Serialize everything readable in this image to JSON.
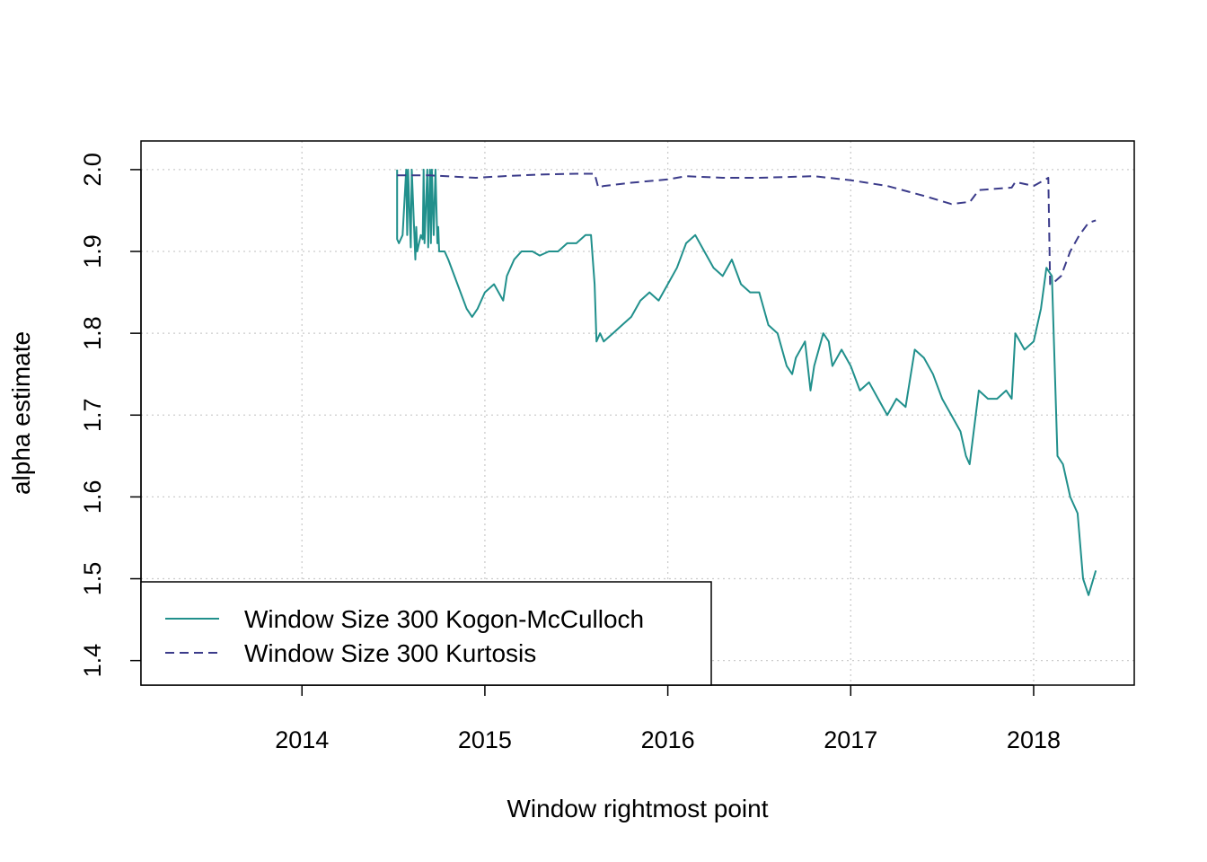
{
  "chart_data": {
    "type": "line",
    "xlabel": "Window rightmost point",
    "ylabel": "alpha estimate",
    "xlim": [
      2013.12,
      2018.55
    ],
    "ylim": [
      1.37,
      2.035
    ],
    "x_ticks": [
      2014,
      2015,
      2016,
      2017,
      2018
    ],
    "y_ticks": [
      1.4,
      1.5,
      1.6,
      1.7,
      1.8,
      1.9,
      2.0
    ],
    "x_tick_labels": [
      "2014",
      "2015",
      "2016",
      "2017",
      "2018"
    ],
    "y_tick_labels": [
      "1.4",
      "1.5",
      "1.6",
      "1.7",
      "1.8",
      "1.9",
      "2.0"
    ],
    "grid": true,
    "legend_position": "bottom-left",
    "series": [
      {
        "name": "Window Size 300 Kogon-McCulloch",
        "color": "#21908C",
        "dash": "solid",
        "x": [
          2014.52,
          2014.52,
          2014.53,
          2014.55,
          2014.57,
          2014.575,
          2014.58,
          2014.595,
          2014.6,
          2014.62,
          2014.625,
          2014.63,
          2014.65,
          2014.66,
          2014.665,
          2014.67,
          2014.685,
          2014.69,
          2014.7,
          2014.705,
          2014.71,
          2014.72,
          2014.73,
          2014.74,
          2014.745,
          2014.75,
          2014.78,
          2014.8,
          2014.85,
          2014.9,
          2014.93,
          2014.96,
          2015.0,
          2015.05,
          2015.1,
          2015.12,
          2015.16,
          2015.2,
          2015.26,
          2015.3,
          2015.35,
          2015.4,
          2015.45,
          2015.5,
          2015.55,
          2015.58,
          2015.6,
          2015.61,
          2015.63,
          2015.65,
          2015.7,
          2015.75,
          2015.8,
          2015.85,
          2015.9,
          2015.95,
          2016.0,
          2016.05,
          2016.1,
          2016.15,
          2016.2,
          2016.25,
          2016.3,
          2016.35,
          2016.4,
          2016.45,
          2016.5,
          2016.55,
          2016.6,
          2016.65,
          2016.68,
          2016.7,
          2016.75,
          2016.78,
          2016.8,
          2016.85,
          2016.88,
          2016.9,
          2016.95,
          2017.0,
          2017.05,
          2017.1,
          2017.15,
          2017.2,
          2017.25,
          2017.3,
          2017.35,
          2017.4,
          2017.45,
          2017.5,
          2017.55,
          2017.6,
          2017.63,
          2017.65,
          2017.7,
          2017.75,
          2017.8,
          2017.85,
          2017.88,
          2017.9,
          2017.95,
          2018.0,
          2018.04,
          2018.07,
          2018.1,
          2018.13,
          2018.16,
          2018.2,
          2018.24,
          2018.27,
          2018.3,
          2018.34
        ],
        "y": [
          2.0,
          1.915,
          1.91,
          1.92,
          2.0,
          1.92,
          2.0,
          1.905,
          2.0,
          1.89,
          1.93,
          1.9,
          1.92,
          1.915,
          2.0,
          1.91,
          2.0,
          1.905,
          2.0,
          1.91,
          2.0,
          1.92,
          2.0,
          1.91,
          1.93,
          1.9,
          1.9,
          1.89,
          1.86,
          1.83,
          1.82,
          1.83,
          1.85,
          1.86,
          1.84,
          1.87,
          1.89,
          1.9,
          1.9,
          1.895,
          1.9,
          1.9,
          1.91,
          1.91,
          1.92,
          1.92,
          1.86,
          1.79,
          1.8,
          1.79,
          1.8,
          1.81,
          1.82,
          1.84,
          1.85,
          1.84,
          1.86,
          1.88,
          1.91,
          1.92,
          1.9,
          1.88,
          1.87,
          1.89,
          1.86,
          1.85,
          1.85,
          1.81,
          1.8,
          1.76,
          1.75,
          1.77,
          1.79,
          1.73,
          1.76,
          1.8,
          1.79,
          1.76,
          1.78,
          1.76,
          1.73,
          1.74,
          1.72,
          1.7,
          1.72,
          1.71,
          1.78,
          1.77,
          1.75,
          1.72,
          1.7,
          1.68,
          1.65,
          1.64,
          1.73,
          1.72,
          1.72,
          1.73,
          1.72,
          1.8,
          1.78,
          1.79,
          1.83,
          1.88,
          1.87,
          1.65,
          1.64,
          1.6,
          1.58,
          1.5,
          1.48,
          1.51
        ]
      },
      {
        "name": "Window Size 300 Kurtosis",
        "color": "#3B3B8A",
        "dash": "dashed",
        "x": [
          2014.52,
          2014.7,
          2014.95,
          2015.1,
          2015.3,
          2015.5,
          2015.6,
          2015.62,
          2015.65,
          2015.8,
          2016.0,
          2016.1,
          2016.3,
          2016.5,
          2016.8,
          2017.0,
          2017.2,
          2017.4,
          2017.55,
          2017.63,
          2017.65,
          2017.7,
          2017.88,
          2017.9,
          2018.0,
          2018.08,
          2018.09,
          2018.1,
          2018.15,
          2018.2,
          2018.25,
          2018.3,
          2018.34
        ],
        "y": [
          1.993,
          1.993,
          1.99,
          1.992,
          1.994,
          1.995,
          1.995,
          1.978,
          1.98,
          1.984,
          1.988,
          1.992,
          1.99,
          1.99,
          1.992,
          1.987,
          1.98,
          1.968,
          1.958,
          1.96,
          1.96,
          1.975,
          1.978,
          1.985,
          1.98,
          1.99,
          1.86,
          1.86,
          1.87,
          1.9,
          1.92,
          1.935,
          1.938
        ]
      }
    ]
  }
}
